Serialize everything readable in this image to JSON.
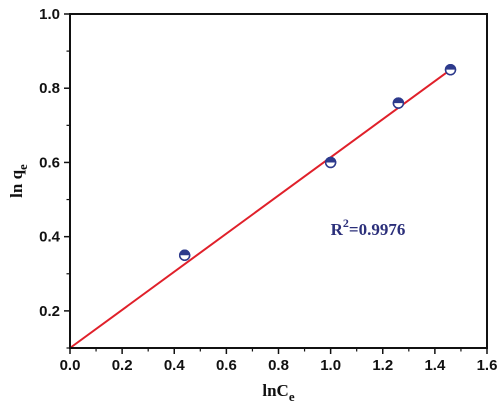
{
  "colors": {
    "fit_line": "#e0202a",
    "marker_fill": "#2d3a8c",
    "marker_edge": "#2d3a8c",
    "annotation": "#2b2f7a",
    "axes": "#111111"
  },
  "chart_data": {
    "type": "scatter",
    "title": "",
    "xlabel_main": "lnC",
    "xlabel_sub": "e",
    "ylabel_main": "ln q",
    "ylabel_sub": "e",
    "xlim": [
      0.0,
      1.6
    ],
    "ylim": [
      0.1,
      1.0
    ],
    "xticks": [
      0.0,
      0.2,
      0.4,
      0.6,
      0.8,
      1.0,
      1.2,
      1.4,
      1.6
    ],
    "xtick_labels": [
      "0.0",
      "0.2",
      "0.4",
      "0.6",
      "0.8",
      "1.0",
      "1.2",
      "1.4",
      "1.6"
    ],
    "yticks": [
      0.2,
      0.4,
      0.6,
      0.8,
      1.0
    ],
    "ytick_labels": [
      "0.2",
      "0.4",
      "0.6",
      "0.8",
      "1.0"
    ],
    "grid": false,
    "series": [
      {
        "kind": "points",
        "marker": "half-filled circle",
        "x": [
          0.44,
          1.0,
          1.26,
          1.46
        ],
        "y": [
          0.35,
          0.6,
          0.76,
          0.85
        ]
      },
      {
        "kind": "fit-line",
        "x": [
          0.0,
          1.46
        ],
        "y": [
          0.1,
          0.85
        ]
      }
    ],
    "annotation": {
      "prefix": "R",
      "exponent": "2",
      "value": "=0.9976",
      "at": [
        1.0,
        0.405
      ]
    }
  }
}
